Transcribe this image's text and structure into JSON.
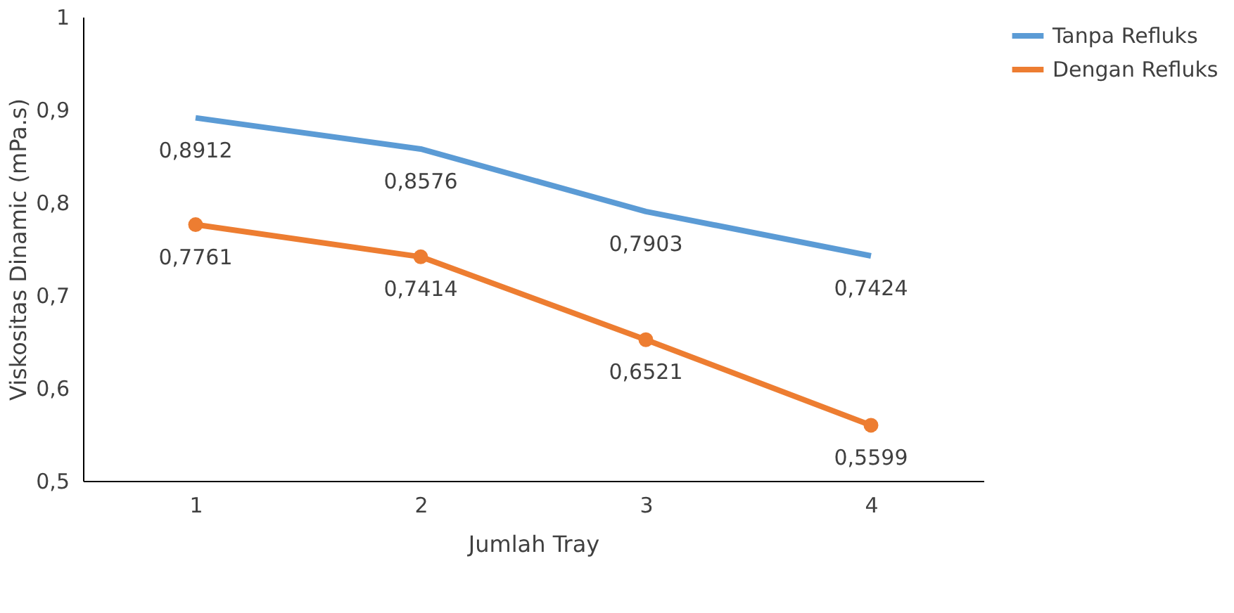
{
  "chart_data": {
    "type": "line",
    "xlabel": "Jumlah Tray",
    "ylabel": "Viskositas Dinamic (mPa.s)",
    "categories": [
      "1",
      "2",
      "3",
      "4"
    ],
    "series": [
      {
        "name": "Tanpa Refluks",
        "color": "#5b9bd5",
        "marker": "none",
        "values": [
          0.8912,
          0.8576,
          0.7903,
          0.7424
        ],
        "value_labels": [
          "0,8912",
          "0,8576",
          "0,7903",
          "0,7424"
        ]
      },
      {
        "name": "Dengan Refluks",
        "color": "#ed7d31",
        "marker": "circle",
        "values": [
          0.7761,
          0.7414,
          0.6521,
          0.5599
        ],
        "value_labels": [
          "0,7761",
          "0,7414",
          "0,6521",
          "0,5599"
        ]
      }
    ],
    "ylim": [
      0.5,
      1
    ],
    "yticks": [
      {
        "value": 0.5,
        "label": "0,5"
      },
      {
        "value": 0.6,
        "label": "0,6"
      },
      {
        "value": 0.7,
        "label": "0,7"
      },
      {
        "value": 0.8,
        "label": "0,8"
      },
      {
        "value": 0.9,
        "label": "0,9"
      },
      {
        "value": 1,
        "label": "1"
      }
    ],
    "grid": false,
    "legend": "right",
    "line_style": "solid"
  }
}
